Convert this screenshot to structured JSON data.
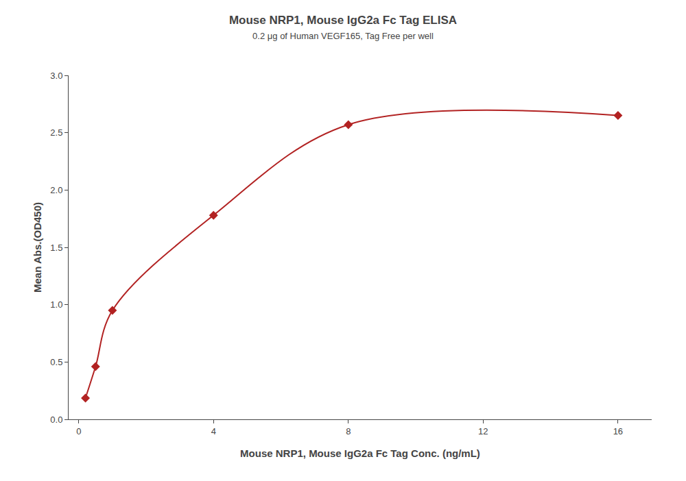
{
  "chart_data": {
    "type": "scatter",
    "title": "Mouse NRP1, Mouse IgG2a Fc Tag ELISA",
    "subtitle": "0.2 μg of Human VEGF165, Tag Free per well",
    "xlabel": "Mouse NRP1, Mouse IgG2a Fc Tag Conc. (ng/mL)",
    "ylabel": "Mean Abs.(OD450)",
    "x": [
      0.2,
      0.5,
      1.0,
      4.0,
      8.0,
      16.0
    ],
    "values": [
      0.185,
      0.46,
      0.95,
      1.78,
      2.57,
      2.65
    ],
    "color": "#B22222",
    "marker": "diamond",
    "line_style": "solid",
    "xlim": [
      -0.3,
      17.0
    ],
    "ylim": [
      0.0,
      3.0
    ],
    "xticks": [
      0,
      4,
      8,
      12,
      16
    ],
    "yticks": [
      {
        "value": 0.0,
        "label": "0.0"
      },
      0.5,
      {
        "value": 1.0,
        "label": "1.0"
      },
      1.5,
      {
        "value": 2.0,
        "label": "2.0"
      },
      2.5,
      {
        "value": 3.0,
        "label": "3.0"
      }
    ],
    "grid": false
  }
}
